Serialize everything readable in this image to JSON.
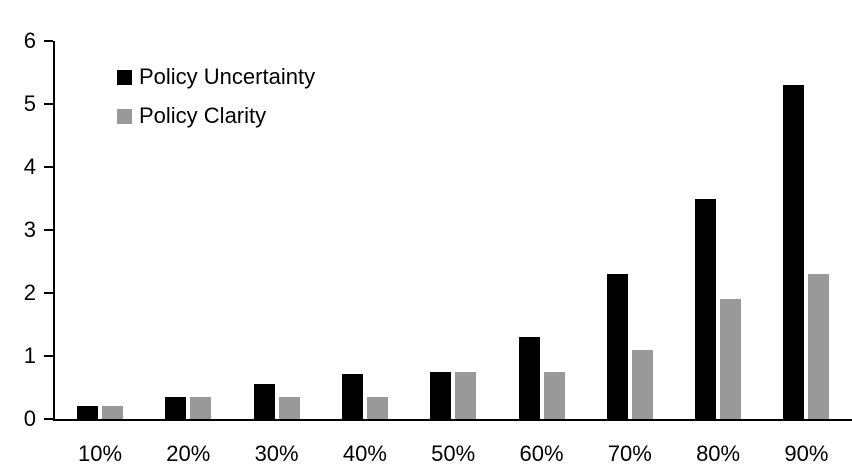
{
  "chart_data": {
    "type": "bar",
    "title": "",
    "categories": [
      "10%",
      "20%",
      "30%",
      "40%",
      "50%",
      "60%",
      "70%",
      "80%",
      "90%"
    ],
    "series": [
      {
        "name": "Policy Uncertainty",
        "color": "#000000",
        "values": [
          0.2,
          0.35,
          0.55,
          0.72,
          0.75,
          1.3,
          2.3,
          3.5,
          5.3
        ]
      },
      {
        "name": "Policy Clarity",
        "color": "#999999",
        "values": [
          0.2,
          0.35,
          0.35,
          0.35,
          0.75,
          0.75,
          1.1,
          1.9,
          2.3
        ]
      }
    ],
    "xlabel": "",
    "ylabel": "",
    "ylim": [
      0,
      6
    ],
    "yticks": [
      0,
      1,
      2,
      3,
      4,
      5,
      6
    ],
    "grid": false,
    "legend_position": "top-left",
    "axis_color": "#000000",
    "background_color": "#ffffff"
  }
}
